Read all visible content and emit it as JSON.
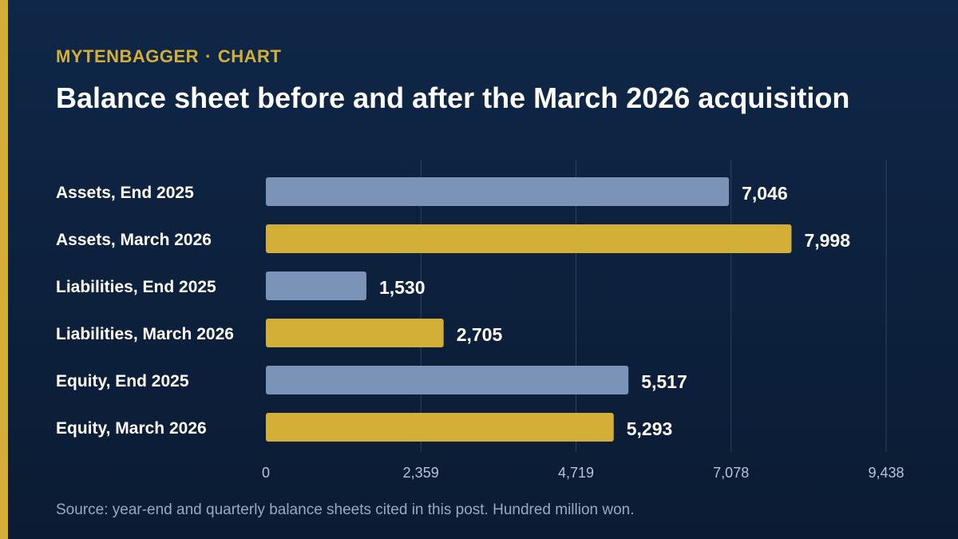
{
  "header": {
    "brand": "MYTENBAGGER",
    "separator": "·",
    "section": "CHART",
    "title": "Balance sheet before and after the March 2026 acquisition"
  },
  "footer": {
    "source": "Source: year-end and quarterly balance sheets cited in this post. Hundred million won."
  },
  "colors": {
    "accent": "#d4af37",
    "end_2025": "#7b93b7",
    "march_2026": "#d4af37",
    "grid": "#2a4266"
  },
  "chart_data": {
    "type": "bar",
    "orientation": "horizontal",
    "categories": [
      "Assets, End 2025",
      "Assets, March 2026",
      "Liabilities, End 2025",
      "Liabilities, March 2026",
      "Equity, End 2025",
      "Equity, March 2026"
    ],
    "values": [
      7046,
      7998,
      1530,
      2705,
      5517,
      5293
    ],
    "value_labels": [
      "7,046",
      "7,998",
      "1,530",
      "2,705",
      "5,517",
      "5,293"
    ],
    "bar_period": [
      "End 2025",
      "March 2026",
      "End 2025",
      "March 2026",
      "End 2025",
      "March 2026"
    ],
    "xlim": [
      0,
      9438
    ],
    "xticks": [
      0,
      2359,
      4719,
      7078,
      9438
    ],
    "xtick_labels": [
      "0",
      "2,359",
      "4,719",
      "7,078",
      "9,438"
    ],
    "grid": true
  }
}
